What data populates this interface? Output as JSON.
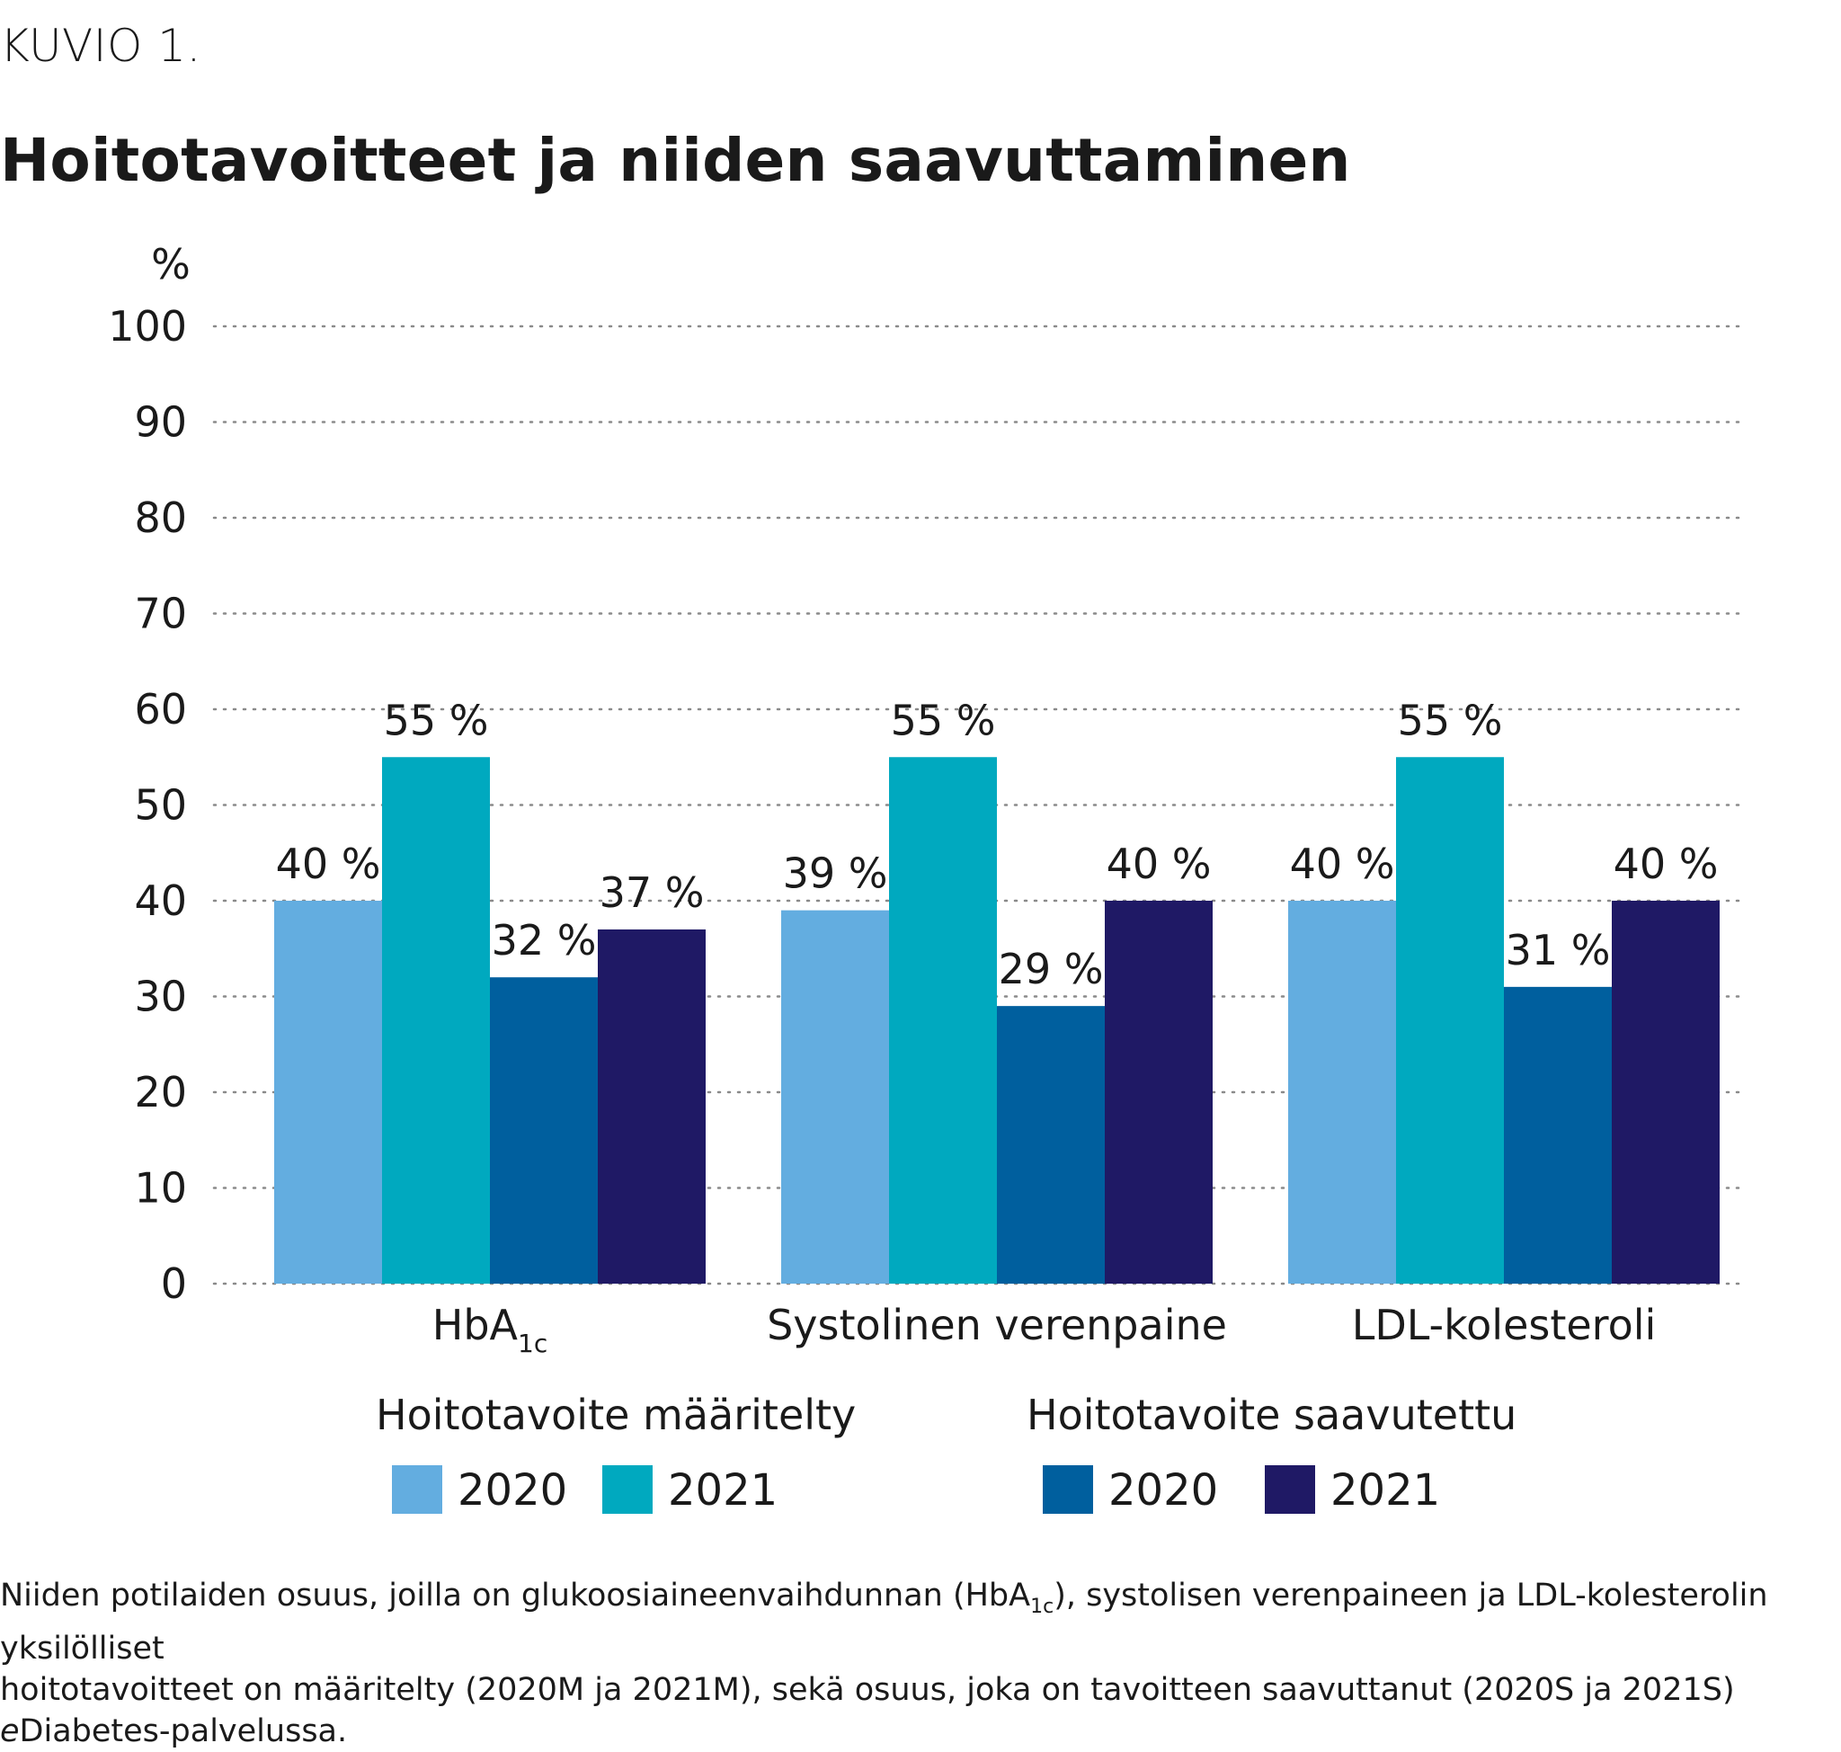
{
  "header": {
    "figure_label": "KUVIO 1.",
    "title": "Hoitotavoitteet ja niiden saavuttaminen"
  },
  "chart_data": {
    "type": "bar",
    "ylabel": "%",
    "ylim": [
      0,
      100
    ],
    "yticks": [
      0,
      10,
      20,
      30,
      40,
      50,
      60,
      70,
      80,
      90,
      100
    ],
    "grid": "dotted horizontal",
    "categories": [
      {
        "label": "HbA",
        "subscript": "1c"
      },
      {
        "label": "Systolinen verenpaine",
        "subscript": ""
      },
      {
        "label": "LDL-kolesteroli",
        "subscript": ""
      }
    ],
    "series": [
      {
        "group": "Hoitotavoite määritelty",
        "name": "2020",
        "color": "#63ADE0",
        "values": [
          40,
          39,
          40
        ],
        "labels": [
          "40 %",
          "39 %",
          "40 %"
        ]
      },
      {
        "group": "Hoitotavoite määritelty",
        "name": "2021",
        "color": "#00A9BF",
        "values": [
          55,
          55,
          55
        ],
        "labels": [
          "55 %",
          "55 %",
          "55 %"
        ]
      },
      {
        "group": "Hoitotavoite saavutettu",
        "name": "2020",
        "color": "#005F9E",
        "values": [
          32,
          29,
          31
        ],
        "labels": [
          "32 %",
          "29 %",
          "31 %"
        ]
      },
      {
        "group": "Hoitotavoite saavutettu",
        "name": "2021",
        "color": "#1F1965",
        "values": [
          37,
          40,
          40
        ],
        "labels": [
          "37 %",
          "40 %",
          "40 %"
        ]
      }
    ],
    "legend": {
      "placement": "bottom",
      "groups": [
        "Hoitotavoite määritelty",
        "Hoitotavoite saavutettu"
      ]
    }
  },
  "footnote": {
    "line1_a": "Niiden potilaiden osuus, joilla on glukoosiaineenvaihdunnan (HbA",
    "line1_sub": "1c",
    "line1_b": "), systolisen verenpaineen ja LDL-kolesterolin yksilölliset",
    "line2": "hoitotavoitteet on määritelty (2020M ja 2021M), sekä osuus, joka on tavoitteen saavuttanut (2020S ja 2021S)",
    "line3_italic": "e",
    "line3_rest": "Diabetes-palvelussa."
  }
}
